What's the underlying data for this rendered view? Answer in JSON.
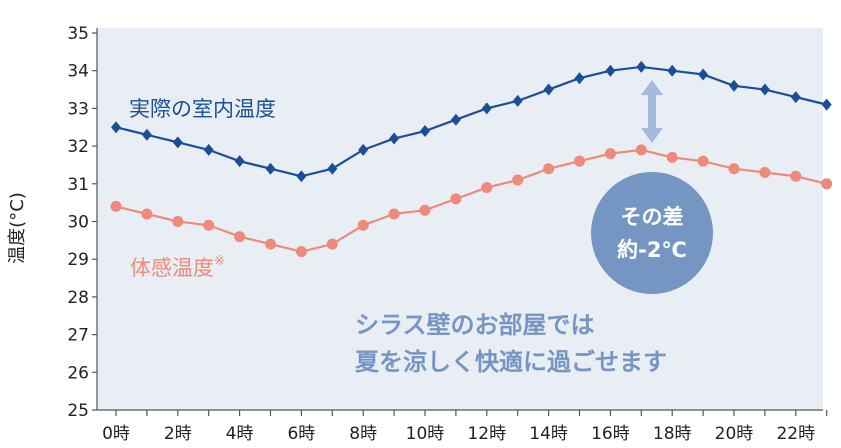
{
  "chart_data": {
    "type": "line",
    "ylabel": "温度(°C)",
    "ylim": [
      25,
      35
    ],
    "yticks": [
      "25",
      "26",
      "27",
      "28",
      "29",
      "30",
      "31",
      "32",
      "33",
      "34",
      "35"
    ],
    "categories": [
      "0時",
      "1時",
      "2時",
      "3時",
      "4時",
      "5時",
      "6時",
      "7時",
      "8時",
      "9時",
      "10時",
      "11時",
      "12時",
      "13時",
      "14時",
      "15時",
      "16時",
      "17時",
      "18時",
      "19時",
      "20時",
      "21時",
      "22時",
      "23時"
    ],
    "xtick_labels": [
      "0時",
      "2時",
      "4時",
      "6時",
      "8時",
      "10時",
      "12時",
      "14時",
      "16時",
      "18時",
      "20時",
      "22時"
    ],
    "series": [
      {
        "name": "実際の室内温度",
        "color": "#1a4f97",
        "marker": "diamond",
        "values": [
          32.5,
          32.3,
          32.1,
          31.9,
          31.6,
          31.4,
          31.2,
          31.4,
          31.9,
          32.2,
          32.4,
          32.7,
          33.0,
          33.2,
          33.5,
          33.8,
          34.0,
          34.1,
          34.0,
          33.9,
          33.6,
          33.5,
          33.3,
          33.1
        ]
      },
      {
        "name": "体感温度",
        "name_suffix": "※",
        "color": "#ee8a79",
        "marker": "circle",
        "values": [
          30.4,
          30.2,
          30.0,
          29.9,
          29.6,
          29.4,
          29.2,
          29.4,
          29.9,
          30.2,
          30.3,
          30.6,
          30.9,
          31.1,
          31.4,
          31.6,
          31.8,
          31.9,
          31.7,
          31.6,
          31.4,
          31.3,
          31.2,
          31.0
        ]
      }
    ],
    "grid": false,
    "background": "#e9eef5",
    "difference_badge": {
      "line1": "その差",
      "line2": "約-2℃",
      "color": "#7596c2"
    },
    "message": {
      "line1": "シラス壁のお部屋では",
      "line2": "夏を涼しく快適に過ごせます"
    }
  }
}
